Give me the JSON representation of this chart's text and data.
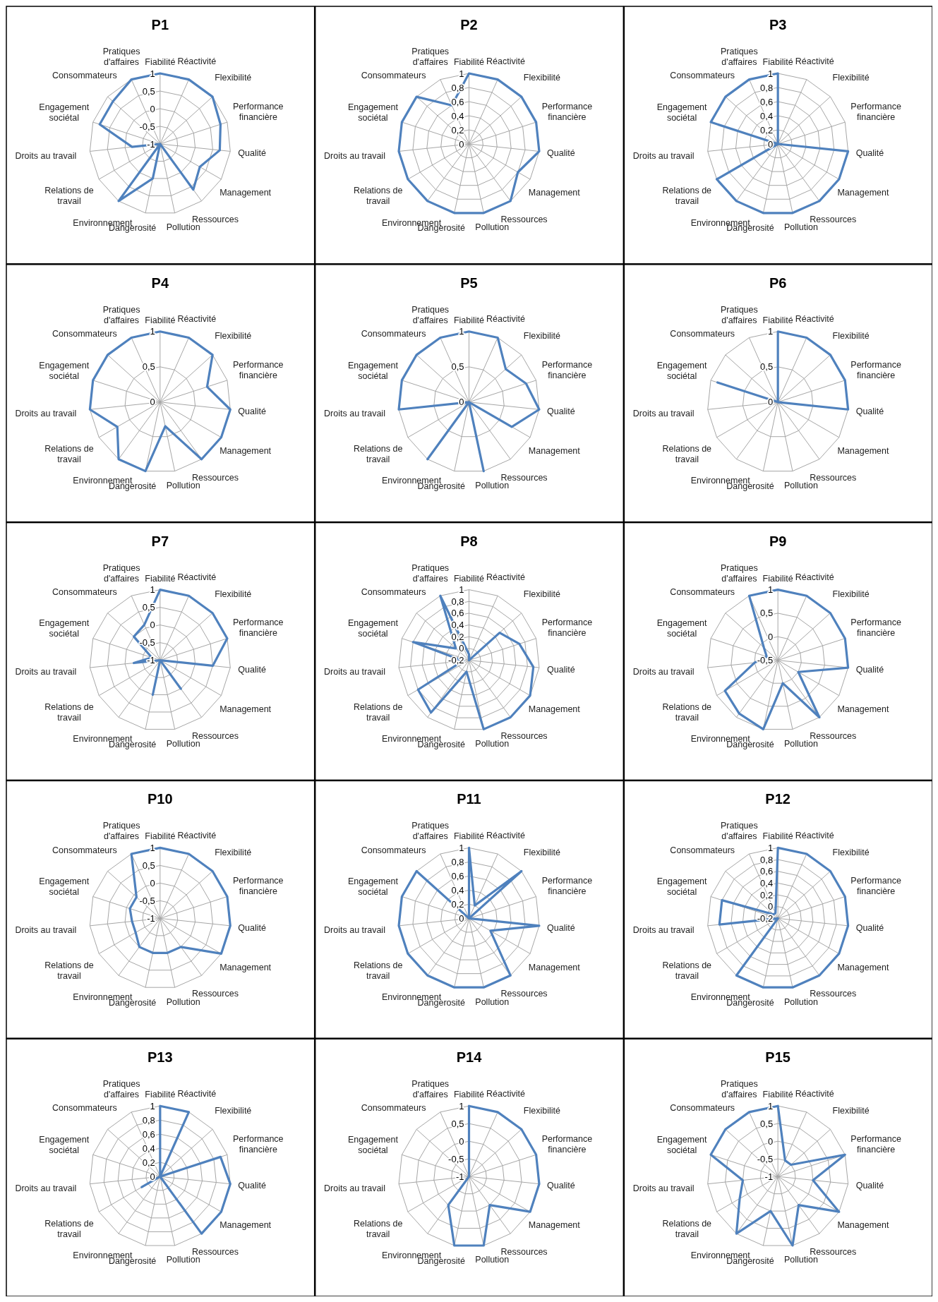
{
  "chart_data": [
    {
      "type": "radar",
      "title": "P1",
      "categories": [
        "Fiabilité",
        "Réactivité",
        "Flexibilité",
        "Performance financière",
        "Qualité",
        "Management",
        "Ressources",
        "Pollution",
        "Dangerosité",
        "Environnement",
        "Relations de travail",
        "Droits au travail",
        "Engagement sociétal",
        "Consommateurs",
        "Pratiques d'affaires"
      ],
      "series": [
        {
          "color": "#4f81bd",
          "values": [
            1,
            1,
            1,
            0.8,
            0.7,
            0.3,
            0.6,
            -1,
            0,
            1,
            -1,
            -0.2,
            0.8,
            0.8,
            1
          ]
        }
      ],
      "ylim": [
        -1,
        1
      ],
      "yticks": [
        -1,
        {
          "value": -0.5,
          "label": "-0,5"
        },
        0,
        {
          "value": 0.5,
          "label": "0,5"
        },
        1
      ],
      "grid": true
    },
    {
      "type": "radar",
      "title": "P2",
      "categories": [
        "Fiabilité",
        "Réactivité",
        "Flexibilité",
        "Performance financière",
        "Qualité",
        "Management",
        "Ressources",
        "Pollution",
        "Dangerosité",
        "Environnement",
        "Relations de travail",
        "Droits au travail",
        "Engagement sociétal",
        "Consommateurs",
        "Pratiques d'affaires"
      ],
      "series": [
        {
          "color": "#4f81bd",
          "values": [
            1,
            1,
            1,
            1,
            1,
            0.8,
            1,
            1,
            1,
            1,
            1,
            1,
            1,
            1,
            0.6
          ]
        }
      ],
      "ylim": [
        0,
        1
      ],
      "yticks": [
        0,
        {
          "value": 0.2,
          "label": "0,2"
        },
        {
          "value": 0.4,
          "label": "0,4"
        },
        {
          "value": 0.6,
          "label": "0,6"
        },
        {
          "value": 0.8,
          "label": "0,8"
        },
        1
      ],
      "grid": true
    },
    {
      "type": "radar",
      "title": "P3",
      "categories": [
        "Fiabilité",
        "Réactivité",
        "Flexibilité",
        "Performance financière",
        "Qualité",
        "Management",
        "Ressources",
        "Pollution",
        "Dangerosité",
        "Environnement",
        "Relations de travail",
        "Droits au travail",
        "Engagement sociétal",
        "Consommateurs",
        "Pratiques d'affaires"
      ],
      "series": [
        {
          "color": "#4f81bd",
          "values": [
            1,
            0,
            0,
            0,
            1,
            1,
            1,
            1,
            1,
            1,
            1,
            0,
            1,
            1,
            1
          ]
        }
      ],
      "ylim": [
        0,
        1
      ],
      "yticks": [
        0,
        {
          "value": 0.2,
          "label": "0,2"
        },
        {
          "value": 0.4,
          "label": "0,4"
        },
        {
          "value": 0.6,
          "label": "0,6"
        },
        {
          "value": 0.8,
          "label": "0,8"
        },
        1
      ],
      "grid": true
    },
    {
      "type": "radar",
      "title": "P4",
      "categories": [
        "Fiabilité",
        "Réactivité",
        "Flexibilité",
        "Performance financière",
        "Qualité",
        "Management",
        "Ressources",
        "Pollution",
        "Dangerosité",
        "Environnement",
        "Relations de travail",
        "Droits au travail",
        "Engagement sociétal",
        "Consommateurs",
        "Pratiques d'affaires"
      ],
      "series": [
        {
          "color": "#4f81bd",
          "values": [
            1,
            1,
            1,
            0.7,
            1,
            1,
            1,
            0.35,
            1,
            1,
            0.7,
            1,
            1,
            1,
            1
          ]
        }
      ],
      "ylim": [
        0,
        1
      ],
      "yticks": [
        0,
        {
          "value": 0.5,
          "label": "0,5"
        },
        1
      ],
      "grid": true
    },
    {
      "type": "radar",
      "title": "P5",
      "categories": [
        "Fiabilité",
        "Réactivité",
        "Flexibilité",
        "Performance financière",
        "Qualité",
        "Management",
        "Ressources",
        "Pollution",
        "Dangerosité",
        "Environnement",
        "Relations de travail",
        "Droits au travail",
        "Engagement sociétal",
        "Consommateurs",
        "Pratiques d'affaires"
      ],
      "series": [
        {
          "color": "#4f81bd",
          "values": [
            1,
            1,
            0.7,
            0.85,
            1,
            0.7,
            0,
            1,
            0,
            1,
            0,
            1,
            1,
            1,
            1
          ]
        }
      ],
      "ylim": [
        0,
        1
      ],
      "yticks": [
        0,
        {
          "value": 0.5,
          "label": "0,5"
        },
        1
      ],
      "grid": true
    },
    {
      "type": "radar",
      "title": "P6",
      "categories": [
        "Fiabilité",
        "Réactivité",
        "Flexibilité",
        "Performance financière",
        "Qualité",
        "Management",
        "Ressources",
        "Pollution",
        "Dangerosité",
        "Environnement",
        "Relations de travail",
        "Droits au travail",
        "Engagement sociétal",
        "Consommateurs",
        "Pratiques d'affaires"
      ],
      "series": [
        {
          "color": "#4f81bd",
          "values": [
            1,
            1,
            1,
            1,
            1,
            0,
            0,
            0,
            0,
            0,
            0,
            0,
            0.9,
            0,
            0
          ]
        }
      ],
      "ylim": [
        0,
        1
      ],
      "yticks": [
        0,
        {
          "value": 0.5,
          "label": "0,5"
        },
        1
      ],
      "grid": true
    },
    {
      "type": "radar",
      "title": "P7",
      "categories": [
        "Fiabilité",
        "Réactivité",
        "Flexibilité",
        "Performance financière",
        "Qualité",
        "Management",
        "Ressources",
        "Pollution",
        "Dangerosité",
        "Environnement",
        "Relations de travail",
        "Droits au travail",
        "Engagement sociétal",
        "Consommateurs",
        "Pratiques d'affaires"
      ],
      "series": [
        {
          "color": "#4f81bd",
          "values": [
            1,
            1,
            1,
            1,
            0.5,
            -1,
            0,
            -1,
            0,
            -1,
            -1,
            -0.25,
            -0.75,
            0,
            0.1
          ]
        }
      ],
      "ylim": [
        -1,
        1
      ],
      "yticks": [
        -1,
        {
          "value": -0.5,
          "label": "-0,5"
        },
        0,
        {
          "value": 0.5,
          "label": "0,5"
        },
        1
      ],
      "grid": true
    },
    {
      "type": "radar",
      "title": "P8",
      "categories": [
        "Fiabilité",
        "Réactivité",
        "Flexibilité",
        "Performance financière",
        "Qualité",
        "Management",
        "Ressources",
        "Pollution",
        "Dangerosité",
        "Environnement",
        "Relations de travail",
        "Droits au travail",
        "Engagement sociétal",
        "Consommateurs",
        "Pratiques d'affaires"
      ],
      "series": [
        {
          "color": "#4f81bd",
          "values": [
            -0.1,
            -0.2,
            0.5,
            0.7,
            0.9,
            1,
            1,
            1,
            0,
            0.9,
            0.8,
            -0.1,
            0.8,
            0.1,
            1
          ]
        }
      ],
      "ylim": [
        -0.2,
        1
      ],
      "yticks": [
        {
          "value": -0.2,
          "label": "-0,2"
        },
        0,
        {
          "value": 0.2,
          "label": "0,2"
        },
        {
          "value": 0.4,
          "label": "0,4"
        },
        {
          "value": 0.6,
          "label": "0,6"
        },
        {
          "value": 0.8,
          "label": "0,8"
        },
        1
      ],
      "grid": true
    },
    {
      "type": "radar",
      "title": "P9",
      "categories": [
        "Fiabilité",
        "Réactivité",
        "Flexibilité",
        "Performance financière",
        "Qualité",
        "Management",
        "Ressources",
        "Pollution",
        "Dangerosité",
        "Environnement",
        "Relations de travail",
        "Droits au travail",
        "Engagement sociétal",
        "Consommateurs",
        "Pratiques d'affaires"
      ],
      "series": [
        {
          "color": "#4f81bd",
          "values": [
            1,
            1,
            1,
            1,
            1,
            0,
            1,
            0,
            1,
            0.9,
            0.8,
            0,
            -0.25,
            -0.1,
            1
          ]
        }
      ],
      "ylim": [
        -0.5,
        1
      ],
      "yticks": [
        {
          "value": -0.5,
          "label": "-0,5"
        },
        0,
        {
          "value": 0.5,
          "label": "0,5"
        },
        1
      ],
      "grid": true
    },
    {
      "type": "radar",
      "title": "P10",
      "categories": [
        "Fiabilité",
        "Réactivité",
        "Flexibilité",
        "Performance financière",
        "Qualité",
        "Management",
        "Ressources",
        "Pollution",
        "Dangerosité",
        "Environnement",
        "Relations de travail",
        "Droits au travail",
        "Engagement sociétal",
        "Consommateurs",
        "Pratiques d'affaires"
      ],
      "series": [
        {
          "color": "#4f81bd",
          "values": [
            1,
            1,
            1,
            1,
            1,
            1,
            0,
            0,
            0,
            0,
            -0.2,
            -0.2,
            -0.1,
            -0.1,
            1
          ]
        }
      ],
      "ylim": [
        -1,
        1
      ],
      "yticks": [
        -1,
        {
          "value": -0.5,
          "label": "-0,5"
        },
        0,
        {
          "value": 0.5,
          "label": "0,5"
        },
        1
      ],
      "grid": true
    },
    {
      "type": "radar",
      "title": "P11",
      "categories": [
        "Fiabilité",
        "Réactivité",
        "Flexibilité",
        "Performance financière",
        "Qualité",
        "Management",
        "Ressources",
        "Pollution",
        "Dangerosité",
        "Environnement",
        "Relations de travail",
        "Droits au travail",
        "Engagement sociétal",
        "Consommateurs",
        "Pratiques d'affaires"
      ],
      "series": [
        {
          "color": "#4f81bd",
          "values": [
            1,
            0.2,
            1,
            0,
            1,
            0.35,
            1,
            1,
            1,
            1,
            1,
            1,
            1,
            1,
            0
          ]
        }
      ],
      "ylim": [
        0,
        1
      ],
      "yticks": [
        0,
        {
          "value": 0.2,
          "label": "0,2"
        },
        {
          "value": 0.4,
          "label": "0,4"
        },
        {
          "value": 0.6,
          "label": "0,6"
        },
        {
          "value": 0.8,
          "label": "0,8"
        },
        1
      ],
      "grid": true
    },
    {
      "type": "radar",
      "title": "P12",
      "categories": [
        "Fiabilité",
        "Réactivité",
        "Flexibilité",
        "Performance financière",
        "Qualité",
        "Management",
        "Ressources",
        "Pollution",
        "Dangerosité",
        "Environnement",
        "Relations de travail",
        "Droits au travail",
        "Engagement sociétal",
        "Consommateurs",
        "Pratiques d'affaires"
      ],
      "series": [
        {
          "color": "#4f81bd",
          "values": [
            1,
            1,
            1,
            1,
            1,
            1,
            1,
            1,
            1,
            1,
            -0.2,
            0.8,
            0.8,
            -0.1,
            -0.1
          ]
        }
      ],
      "ylim": [
        -0.2,
        1
      ],
      "yticks": [
        {
          "value": -0.2,
          "label": "-0,2"
        },
        0,
        {
          "value": 0.2,
          "label": "0,2"
        },
        {
          "value": 0.4,
          "label": "0,4"
        },
        {
          "value": 0.6,
          "label": "0,6"
        },
        {
          "value": 0.8,
          "label": "0,8"
        },
        1
      ],
      "grid": true
    },
    {
      "type": "radar",
      "title": "P13",
      "categories": [
        "Fiabilité",
        "Réactivité",
        "Flexibilité",
        "Performance financière",
        "Qualité",
        "Management",
        "Ressources",
        "Pollution",
        "Dangerosité",
        "Environnement",
        "Relations de travail",
        "Droits au travail",
        "Engagement sociétal",
        "Consommateurs",
        "Pratiques d'affaires"
      ],
      "series": [
        {
          "color": "#4f81bd",
          "values": [
            1,
            1,
            0,
            0.9,
            1,
            1,
            1,
            0,
            0,
            0,
            0.3,
            0,
            0,
            0,
            0
          ]
        }
      ],
      "ylim": [
        0,
        1
      ],
      "yticks": [
        0,
        {
          "value": 0.2,
          "label": "0,2"
        },
        {
          "value": 0.4,
          "label": "0,4"
        },
        {
          "value": 0.6,
          "label": "0,6"
        },
        {
          "value": 0.8,
          "label": "0,8"
        },
        1
      ],
      "grid": true
    },
    {
      "type": "radar",
      "title": "P14",
      "categories": [
        "Fiabilité",
        "Réactivité",
        "Flexibilité",
        "Performance financière",
        "Qualité",
        "Management",
        "Ressources",
        "Pollution",
        "Dangerosité",
        "Environnement",
        "Relations de travail",
        "Droits au travail",
        "Engagement sociétal",
        "Consommateurs",
        "Pratiques d'affaires"
      ],
      "series": [
        {
          "color": "#4f81bd",
          "values": [
            1,
            1,
            1,
            1,
            1,
            1,
            0,
            1,
            1,
            0,
            -1,
            -1,
            -1,
            -1,
            -1
          ]
        }
      ],
      "ylim": [
        -1,
        1
      ],
      "yticks": [
        -1,
        {
          "value": -0.5,
          "label": "-0,5"
        },
        0,
        {
          "value": 0.5,
          "label": "0,5"
        },
        1
      ],
      "grid": true
    },
    {
      "type": "radar",
      "title": "P15",
      "categories": [
        "Fiabilité",
        "Réactivité",
        "Flexibilité",
        "Performance financière",
        "Qualité",
        "Management",
        "Ressources",
        "Pollution",
        "Dangerosité",
        "Environnement",
        "Relations de travail",
        "Droits au travail",
        "Engagement sociétal",
        "Consommateurs",
        "Pratiques d'affaires"
      ],
      "series": [
        {
          "color": "#4f81bd",
          "values": [
            1,
            -0.5,
            -0.5,
            1,
            0,
            1,
            0,
            1,
            0,
            1,
            0.25,
            0,
            1,
            1,
            1
          ]
        }
      ],
      "ylim": [
        -1,
        1
      ],
      "yticks": [
        -1,
        {
          "value": -0.5,
          "label": "-0,5"
        },
        0,
        {
          "value": 0.5,
          "label": "0,5"
        },
        1
      ],
      "grid": true
    }
  ]
}
